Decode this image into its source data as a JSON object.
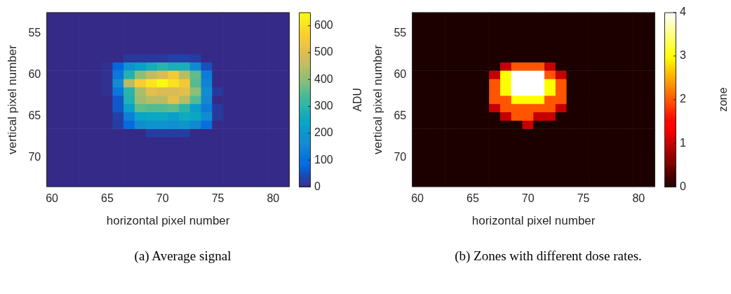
{
  "chart_data": [
    {
      "type": "heatmap",
      "xlabel": "horizontal pixel number",
      "ylabel": "vertical pixel number",
      "clabel": "ADU",
      "annotations": [
        "(a) Average signal"
      ],
      "categories": [
        "60",
        null,
        null,
        null,
        null,
        "65",
        null,
        null,
        null,
        null,
        "70",
        null,
        null,
        null,
        null,
        "75",
        null,
        null,
        null,
        null,
        "80",
        null
      ],
      "y_categories": [
        null,
        null,
        "55",
        null,
        null,
        null,
        null,
        "60",
        null,
        null,
        null,
        null,
        "65",
        null,
        null,
        null,
        null,
        "70",
        null,
        null,
        null
      ],
      "clim": [
        0,
        650
      ],
      "cticks": [
        0,
        100,
        200,
        300,
        400,
        500,
        600
      ],
      "cells": [
        [
          0,
          0,
          0,
          0,
          0,
          0,
          0,
          0,
          0,
          0,
          0,
          0,
          0,
          0,
          0,
          0,
          0,
          0,
          0,
          0,
          0,
          0
        ],
        [
          0,
          0,
          0,
          0,
          0,
          0,
          0,
          0,
          0,
          0,
          0,
          0,
          0,
          0,
          0,
          0,
          0,
          0,
          0,
          0,
          0,
          0
        ],
        [
          0,
          0,
          0,
          0,
          0,
          0,
          0,
          0,
          0,
          0,
          0,
          0,
          0,
          0,
          0,
          0,
          0,
          0,
          0,
          0,
          0,
          0
        ],
        [
          0,
          0,
          0,
          0,
          0,
          0,
          0,
          0,
          0,
          0,
          0,
          0,
          0,
          0,
          0,
          0,
          0,
          0,
          0,
          0,
          0,
          0
        ],
        [
          0,
          0,
          0,
          0,
          0,
          0,
          0,
          0,
          0,
          0,
          0,
          0,
          0,
          0,
          0,
          0,
          0,
          0,
          0,
          0,
          0,
          0
        ],
        [
          0,
          0,
          0,
          0,
          0,
          0,
          0,
          20,
          20,
          20,
          20,
          30,
          30,
          25,
          0,
          0,
          0,
          0,
          0,
          0,
          0,
          0
        ],
        [
          0,
          0,
          0,
          0,
          0,
          10,
          80,
          190,
          230,
          270,
          300,
          280,
          280,
          160,
          50,
          0,
          0,
          0,
          0,
          0,
          0,
          0
        ],
        [
          0,
          0,
          0,
          0,
          0,
          10,
          120,
          290,
          400,
          460,
          490,
          550,
          450,
          360,
          130,
          0,
          0,
          0,
          0,
          0,
          0,
          0
        ],
        [
          0,
          0,
          0,
          0,
          0,
          10,
          170,
          450,
          560,
          610,
          650,
          600,
          550,
          350,
          150,
          0,
          0,
          0,
          0,
          0,
          0,
          0
        ],
        [
          0,
          0,
          0,
          0,
          0,
          10,
          120,
          300,
          430,
          510,
          490,
          490,
          510,
          400,
          170,
          20,
          0,
          0,
          0,
          0,
          0,
          0
        ],
        [
          0,
          0,
          0,
          0,
          0,
          0,
          60,
          290,
          420,
          450,
          450,
          510,
          450,
          350,
          160,
          0,
          0,
          0,
          0,
          0,
          0,
          0
        ],
        [
          0,
          0,
          0,
          0,
          0,
          0,
          60,
          230,
          360,
          350,
          350,
          360,
          310,
          220,
          130,
          20,
          0,
          0,
          0,
          0,
          0,
          0
        ],
        [
          0,
          0,
          0,
          0,
          0,
          0,
          30,
          140,
          240,
          250,
          250,
          220,
          260,
          250,
          170,
          20,
          0,
          0,
          0,
          0,
          0,
          0
        ],
        [
          0,
          0,
          0,
          0,
          0,
          0,
          25,
          90,
          170,
          190,
          190,
          180,
          200,
          160,
          100,
          0,
          0,
          0,
          0,
          0,
          0,
          0
        ],
        [
          0,
          0,
          0,
          0,
          0,
          0,
          0,
          0,
          0,
          25,
          25,
          25,
          25,
          0,
          0,
          0,
          0,
          0,
          0,
          0,
          0,
          0
        ],
        [
          0,
          0,
          0,
          0,
          0,
          0,
          0,
          0,
          0,
          0,
          0,
          0,
          0,
          0,
          0,
          0,
          0,
          0,
          0,
          0,
          0,
          0
        ],
        [
          0,
          0,
          0,
          0,
          0,
          0,
          0,
          0,
          0,
          0,
          0,
          0,
          0,
          0,
          0,
          0,
          0,
          0,
          0,
          0,
          0,
          0
        ],
        [
          0,
          0,
          0,
          0,
          0,
          0,
          0,
          0,
          0,
          0,
          0,
          0,
          0,
          0,
          0,
          0,
          0,
          0,
          0,
          0,
          0,
          0
        ],
        [
          0,
          0,
          0,
          0,
          0,
          0,
          0,
          0,
          0,
          0,
          0,
          0,
          0,
          0,
          0,
          0,
          0,
          0,
          0,
          0,
          0,
          0
        ],
        [
          0,
          0,
          0,
          0,
          0,
          0,
          0,
          0,
          0,
          0,
          0,
          0,
          0,
          0,
          0,
          0,
          0,
          0,
          0,
          0,
          0,
          0
        ],
        [
          0,
          0,
          0,
          0,
          0,
          0,
          0,
          0,
          0,
          0,
          0,
          0,
          0,
          0,
          0,
          0,
          0,
          0,
          0,
          0,
          0,
          0
        ]
      ]
    },
    {
      "type": "heatmap",
      "xlabel": "horizontal pixel number",
      "ylabel": "vertical pixel number",
      "clabel": "zone",
      "annotations": [
        "(b) Zones with different dose rates."
      ],
      "categories": [
        "60",
        null,
        null,
        null,
        null,
        "65",
        null,
        null,
        null,
        null,
        "70",
        null,
        null,
        null,
        null,
        "75",
        null,
        null,
        null,
        null,
        "80",
        null
      ],
      "y_categories": [
        null,
        null,
        "55",
        null,
        null,
        null,
        null,
        "60",
        null,
        null,
        null,
        null,
        "65",
        null,
        null,
        null,
        null,
        "70",
        null,
        null,
        null
      ],
      "clim": [
        0,
        4
      ],
      "cticks": [
        0,
        1,
        2,
        3,
        4
      ],
      "cells": [
        [
          0,
          0,
          0,
          0,
          0,
          0,
          0,
          0,
          0,
          0,
          0,
          0,
          0,
          0,
          0,
          0,
          0,
          0,
          0,
          0,
          0,
          0
        ],
        [
          0,
          0,
          0,
          0,
          0,
          0,
          0,
          0,
          0,
          0,
          0,
          0,
          0,
          0,
          0,
          0,
          0,
          0,
          0,
          0,
          0,
          0
        ],
        [
          0,
          0,
          0,
          0,
          0,
          0,
          0,
          0,
          0,
          0,
          0,
          0,
          0,
          0,
          0,
          0,
          0,
          0,
          0,
          0,
          0,
          0
        ],
        [
          0,
          0,
          0,
          0,
          0,
          0,
          0,
          0,
          0,
          0,
          0,
          0,
          0,
          0,
          0,
          0,
          0,
          0,
          0,
          0,
          0,
          0
        ],
        [
          0,
          0,
          0,
          0,
          0,
          0,
          0,
          0,
          0,
          0,
          0,
          0,
          0,
          0,
          0,
          0,
          0,
          0,
          0,
          0,
          0,
          0
        ],
        [
          0,
          0,
          0,
          0,
          0,
          0,
          0,
          0,
          0,
          0,
          0,
          0,
          0,
          0,
          0,
          0,
          0,
          0,
          0,
          0,
          0,
          0
        ],
        [
          0,
          0,
          0,
          0,
          0,
          0,
          0,
          0,
          1,
          2,
          2,
          2,
          1,
          0,
          0,
          0,
          0,
          0,
          0,
          0,
          0,
          0
        ],
        [
          0,
          0,
          0,
          0,
          0,
          0,
          0,
          1,
          3,
          4,
          4,
          4,
          2,
          1,
          0,
          0,
          0,
          0,
          0,
          0,
          0,
          0
        ],
        [
          0,
          0,
          0,
          0,
          0,
          0,
          0,
          2,
          3,
          4,
          4,
          4,
          3,
          2,
          0,
          0,
          0,
          0,
          0,
          0,
          0,
          0
        ],
        [
          0,
          0,
          0,
          0,
          0,
          0,
          0,
          2,
          3,
          4,
          4,
          4,
          3,
          2,
          0,
          0,
          0,
          0,
          0,
          0,
          0,
          0
        ],
        [
          0,
          0,
          0,
          0,
          0,
          0,
          0,
          2,
          2,
          3,
          3,
          3,
          2,
          2,
          0,
          0,
          0,
          0,
          0,
          0,
          0,
          0
        ],
        [
          0,
          0,
          0,
          0,
          0,
          0,
          0,
          1,
          2,
          2,
          2,
          2,
          2,
          1,
          0,
          0,
          0,
          0,
          0,
          0,
          0,
          0
        ],
        [
          0,
          0,
          0,
          0,
          0,
          0,
          0,
          0,
          1,
          2,
          2,
          1,
          1,
          0,
          0,
          0,
          0,
          0,
          0,
          0,
          0,
          0
        ],
        [
          0,
          0,
          0,
          0,
          0,
          0,
          0,
          0,
          0,
          0,
          1,
          0,
          0,
          0,
          0,
          0,
          0,
          0,
          0,
          0,
          0,
          0
        ],
        [
          0,
          0,
          0,
          0,
          0,
          0,
          0,
          0,
          0,
          0,
          0,
          0,
          0,
          0,
          0,
          0,
          0,
          0,
          0,
          0,
          0,
          0
        ],
        [
          0,
          0,
          0,
          0,
          0,
          0,
          0,
          0,
          0,
          0,
          0,
          0,
          0,
          0,
          0,
          0,
          0,
          0,
          0,
          0,
          0,
          0
        ],
        [
          0,
          0,
          0,
          0,
          0,
          0,
          0,
          0,
          0,
          0,
          0,
          0,
          0,
          0,
          0,
          0,
          0,
          0,
          0,
          0,
          0,
          0
        ],
        [
          0,
          0,
          0,
          0,
          0,
          0,
          0,
          0,
          0,
          0,
          0,
          0,
          0,
          0,
          0,
          0,
          0,
          0,
          0,
          0,
          0,
          0
        ],
        [
          0,
          0,
          0,
          0,
          0,
          0,
          0,
          0,
          0,
          0,
          0,
          0,
          0,
          0,
          0,
          0,
          0,
          0,
          0,
          0,
          0,
          0
        ],
        [
          0,
          0,
          0,
          0,
          0,
          0,
          0,
          0,
          0,
          0,
          0,
          0,
          0,
          0,
          0,
          0,
          0,
          0,
          0,
          0,
          0,
          0
        ],
        [
          0,
          0,
          0,
          0,
          0,
          0,
          0,
          0,
          0,
          0,
          0,
          0,
          0,
          0,
          0,
          0,
          0,
          0,
          0,
          0,
          0,
          0
        ]
      ]
    }
  ]
}
